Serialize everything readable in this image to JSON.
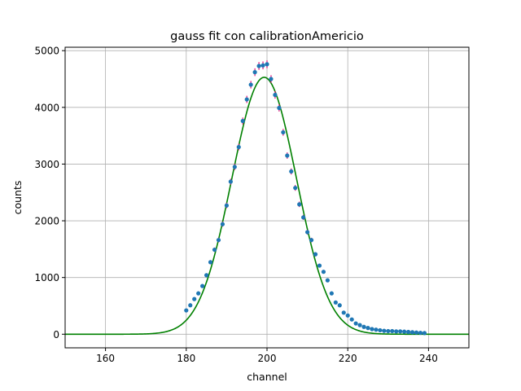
{
  "chart_data": {
    "type": "scatter",
    "title": "gauss fit con calibrationAmericio",
    "xlabel": "channel",
    "ylabel": "counts",
    "xlim": [
      150,
      250
    ],
    "ylim": [
      -240,
      5060
    ],
    "xticks": [
      160,
      180,
      200,
      220,
      240
    ],
    "yticks": [
      0,
      1000,
      2000,
      3000,
      4000,
      5000
    ],
    "grid": true,
    "colors": {
      "data_points": "#1f77b4",
      "error_bars": "#e8127a",
      "fit": "#008000",
      "grid": "#b0b0b0"
    },
    "series": [
      {
        "kind": "data",
        "x": [
          180,
          181,
          182,
          183,
          184,
          185,
          186,
          187,
          188,
          189,
          190,
          191,
          192,
          193,
          194,
          195,
          196,
          197,
          198,
          199,
          200,
          201,
          202,
          203,
          204,
          205,
          206,
          207,
          208,
          209,
          210,
          211,
          212,
          213,
          214,
          215,
          216,
          217,
          218,
          219,
          220,
          221,
          222,
          223,
          224,
          225,
          226,
          227,
          228,
          229,
          230,
          231,
          232,
          233,
          234,
          235,
          236,
          237,
          238,
          239
        ],
        "y": [
          420,
          510,
          620,
          720,
          850,
          1040,
          1270,
          1490,
          1660,
          1940,
          2270,
          2690,
          2950,
          3300,
          3760,
          4140,
          4400,
          4620,
          4730,
          4740,
          4760,
          4500,
          4220,
          3990,
          3560,
          3150,
          2870,
          2580,
          2290,
          2060,
          1800,
          1660,
          1410,
          1210,
          1100,
          950,
          720,
          560,
          510,
          380,
          330,
          260,
          190,
          160,
          130,
          110,
          90,
          80,
          70,
          60,
          55,
          55,
          50,
          50,
          45,
          40,
          35,
          30,
          25,
          20
        ],
        "yerr": [
          20,
          23,
          25,
          27,
          29,
          32,
          36,
          39,
          41,
          44,
          48,
          52,
          54,
          57,
          61,
          64,
          66,
          68,
          69,
          69,
          69,
          67,
          65,
          63,
          60,
          56,
          54,
          51,
          48,
          45,
          42,
          41,
          38,
          35,
          33,
          31,
          27,
          24,
          23,
          19,
          18,
          16,
          14,
          13,
          11,
          10,
          9,
          9,
          8,
          8,
          7,
          7,
          7,
          7,
          7,
          6,
          6,
          5,
          5,
          4
        ]
      },
      {
        "kind": "fit",
        "function": "gaussian",
        "amplitude": 4530,
        "mean": 199.3,
        "sigma": 8.0,
        "x_range": [
          150,
          250
        ]
      }
    ]
  }
}
